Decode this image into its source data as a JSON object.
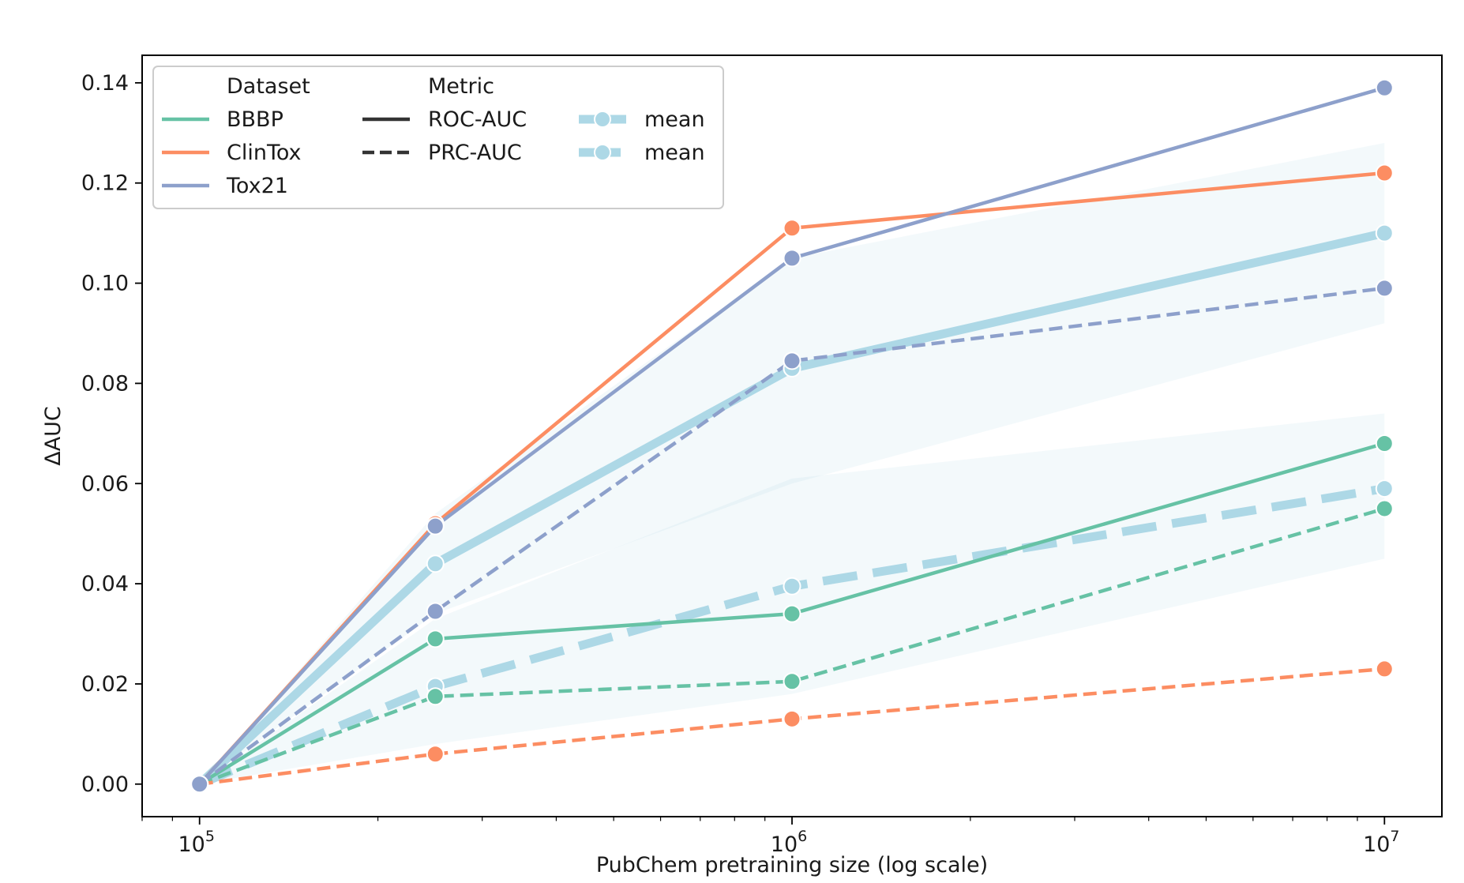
{
  "chart_data": {
    "type": "line",
    "title": "",
    "xlabel": "PubChem pretraining size (log scale)",
    "ylabel": "ΔAUC",
    "x_scale": "log",
    "x": [
      100000,
      250000,
      1000000,
      10000000
    ],
    "xlim": [
      80000,
      12500000
    ],
    "ylim": [
      -0.0065,
      0.1455
    ],
    "x_ticks": [
      100000,
      1000000,
      10000000
    ],
    "x_tick_labels": [
      {
        "base": "10",
        "exp": "5"
      },
      {
        "base": "10",
        "exp": "6"
      },
      {
        "base": "10",
        "exp": "7"
      }
    ],
    "y_ticks": [
      0.0,
      0.02,
      0.04,
      0.06,
      0.08,
      0.1,
      0.12,
      0.14
    ],
    "y_tick_labels": [
      "0.00",
      "0.02",
      "0.04",
      "0.06",
      "0.08",
      "0.10",
      "0.12",
      "0.14"
    ],
    "grid": false,
    "legend_placement": "upper-left",
    "legend": {
      "dataset_title": "Dataset",
      "metric_title": "Metric",
      "datasets": [
        {
          "label": "BBBP",
          "color": "#66c2a5"
        },
        {
          "label": "ClinTox",
          "color": "#fc8d62"
        },
        {
          "label": "Tox21",
          "color": "#8da0cb"
        }
      ],
      "metrics": [
        {
          "label": "ROC-AUC",
          "style": "solid"
        },
        {
          "label": "PRC-AUC",
          "style": "dashed"
        }
      ],
      "means": [
        {
          "label": "mean",
          "style": "solid"
        },
        {
          "label": "mean",
          "style": "dashed"
        }
      ]
    },
    "series": [
      {
        "dataset": "BBBP",
        "metric": "ROC-AUC",
        "color": "#66c2a5",
        "style": "solid",
        "values": [
          0.0,
          0.029,
          0.034,
          0.068
        ]
      },
      {
        "dataset": "ClinTox",
        "metric": "ROC-AUC",
        "color": "#fc8d62",
        "style": "solid",
        "values": [
          0.0,
          0.052,
          0.111,
          0.122
        ]
      },
      {
        "dataset": "Tox21",
        "metric": "ROC-AUC",
        "color": "#8da0cb",
        "style": "solid",
        "values": [
          0.0,
          0.0515,
          0.105,
          0.139
        ]
      },
      {
        "dataset": "BBBP",
        "metric": "PRC-AUC",
        "color": "#66c2a5",
        "style": "dashed",
        "values": [
          0.0,
          0.0175,
          0.0205,
          0.055
        ]
      },
      {
        "dataset": "ClinTox",
        "metric": "PRC-AUC",
        "color": "#fc8d62",
        "style": "dashed",
        "values": [
          0.0,
          0.006,
          0.013,
          0.023
        ]
      },
      {
        "dataset": "Tox21",
        "metric": "PRC-AUC",
        "color": "#8da0cb",
        "style": "dashed",
        "values": [
          0.0,
          0.0345,
          0.0845,
          0.099
        ]
      }
    ],
    "means": [
      {
        "metric": "ROC-AUC",
        "color": "#add8e6",
        "style": "solid",
        "values": [
          0.0,
          0.044,
          0.083,
          0.11
        ],
        "band_low": [
          0.0,
          0.034,
          0.06,
          0.092
        ],
        "band_high": [
          0.0,
          0.054,
          0.105,
          0.128
        ]
      },
      {
        "metric": "PRC-AUC",
        "color": "#add8e6",
        "style": "dashed",
        "values": [
          0.0,
          0.0195,
          0.0395,
          0.059
        ],
        "band_low": [
          0.0,
          0.008,
          0.018,
          0.045
        ],
        "band_high": [
          0.0,
          0.033,
          0.061,
          0.074
        ]
      }
    ]
  }
}
